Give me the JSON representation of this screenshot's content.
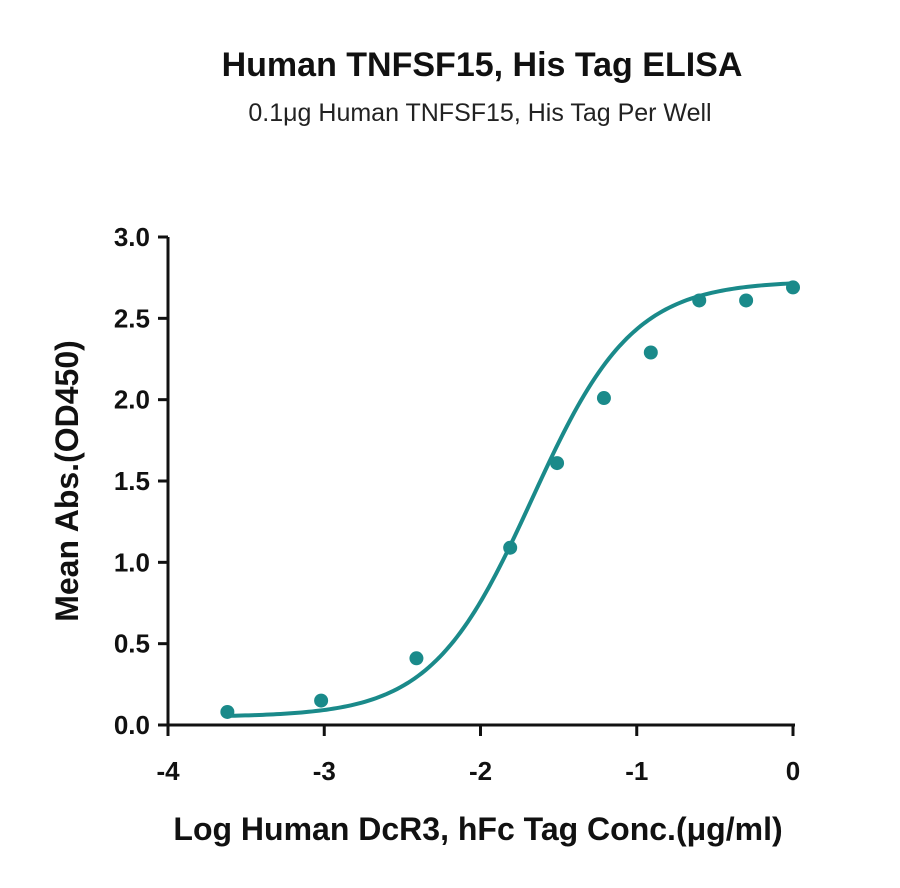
{
  "chart_data": {
    "type": "scatter",
    "title": "Human TNFSF15, His Tag ELISA",
    "subtitle": "0.1μg Human TNFSF15, His Tag Per Well",
    "xlabel": "Log Human DcR3, hFc Tag Conc.(μg/ml)",
    "ylabel": "Mean Abs.(OD450)",
    "xlim": [
      -4,
      0
    ],
    "ylim": [
      0,
      3
    ],
    "xticks": [
      -4,
      -3,
      -2,
      -1,
      0
    ],
    "xtick_labels": [
      "-4",
      "-3",
      "-2",
      "-1",
      "0"
    ],
    "yticks": [
      0,
      0.5,
      1,
      1.5,
      2,
      2.5,
      3
    ],
    "ytick_labels": [
      "0.0",
      "0.5",
      "1.0",
      "1.5",
      "2.0",
      "2.5",
      "3.0"
    ],
    "grid": false,
    "color": "#1a8a8a",
    "series": [
      {
        "x": [
          -3.62,
          -3.02,
          -2.41,
          -1.81,
          -1.51,
          -1.21,
          -0.91,
          -0.6,
          -0.3,
          0.0
        ],
        "y": [
          0.08,
          0.15,
          0.41,
          1.09,
          1.61,
          2.01,
          2.29,
          2.61,
          2.61,
          2.69
        ],
        "fit": {
          "model": "4PL",
          "bottom": 0.05,
          "top": 2.73,
          "logEC50": -1.67,
          "hill": 1.35
        }
      }
    ]
  }
}
